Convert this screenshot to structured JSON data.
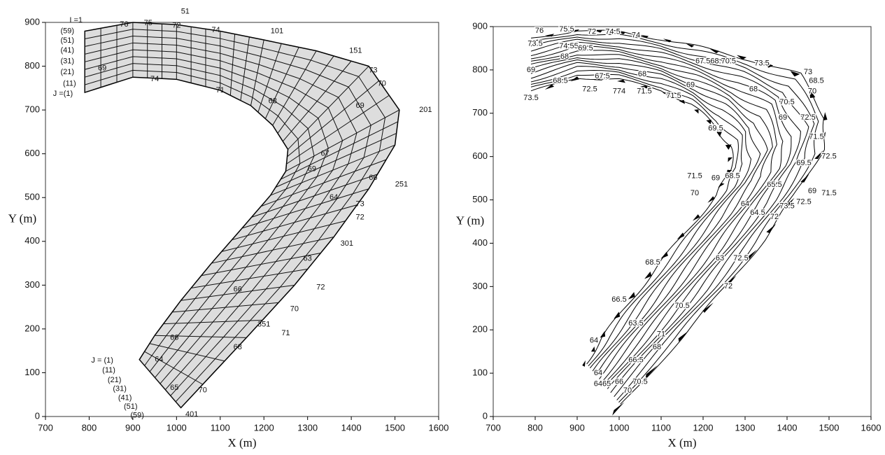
{
  "chart_data": [
    {
      "type": "mesh",
      "xlabel": "X (m)",
      "ylabel": "Y (m)",
      "xlim": [
        700,
        1600
      ],
      "ylim": [
        0,
        900
      ],
      "xticks": [
        700,
        800,
        900,
        1000,
        1100,
        1200,
        1300,
        1400,
        1500,
        1600
      ],
      "yticks": [
        0,
        100,
        200,
        300,
        400,
        500,
        600,
        700,
        800,
        900
      ],
      "annotations": [
        {
          "text": "I =1",
          "x": 770,
          "y": 905
        },
        {
          "text": "51",
          "x": 1020,
          "y": 925
        },
        {
          "text": "101",
          "x": 1230,
          "y": 880
        },
        {
          "text": "151",
          "x": 1410,
          "y": 835
        },
        {
          "text": "201",
          "x": 1570,
          "y": 700
        },
        {
          "text": "251",
          "x": 1515,
          "y": 530
        },
        {
          "text": "301",
          "x": 1390,
          "y": 395
        },
        {
          "text": "351",
          "x": 1200,
          "y": 210
        },
        {
          "text": "401",
          "x": 1035,
          "y": 5
        },
        {
          "text": "(59)",
          "x": 750,
          "y": 880
        },
        {
          "text": "(51)",
          "x": 750,
          "y": 858
        },
        {
          "text": "(41)",
          "x": 750,
          "y": 836
        },
        {
          "text": "(31)",
          "x": 750,
          "y": 811
        },
        {
          "text": "(21)",
          "x": 750,
          "y": 786
        },
        {
          "text": "(11)",
          "x": 755,
          "y": 760
        },
        {
          "text": "J =(1)",
          "x": 740,
          "y": 737
        },
        {
          "text": "J = (1)",
          "x": 830,
          "y": 128
        },
        {
          "text": "(11)",
          "x": 845,
          "y": 105
        },
        {
          "text": "(21)",
          "x": 858,
          "y": 83
        },
        {
          "text": "(31)",
          "x": 870,
          "y": 63
        },
        {
          "text": "(41)",
          "x": 882,
          "y": 42
        },
        {
          "text": "(51)",
          "x": 895,
          "y": 22
        },
        {
          "text": "(59)",
          "x": 910,
          "y": 2
        },
        {
          "text": "76",
          "x": 880,
          "y": 895
        },
        {
          "text": "75",
          "x": 935,
          "y": 898
        },
        {
          "text": "72",
          "x": 1000,
          "y": 893
        },
        {
          "text": "74",
          "x": 1090,
          "y": 882
        },
        {
          "text": "73",
          "x": 1450,
          "y": 790
        },
        {
          "text": "70",
          "x": 1470,
          "y": 760
        },
        {
          "text": "69",
          "x": 1420,
          "y": 710
        },
        {
          "text": "67",
          "x": 1340,
          "y": 600
        },
        {
          "text": "69",
          "x": 1310,
          "y": 565
        },
        {
          "text": "66",
          "x": 1450,
          "y": 545
        },
        {
          "text": "64",
          "x": 1360,
          "y": 500
        },
        {
          "text": "73",
          "x": 1420,
          "y": 485
        },
        {
          "text": "72",
          "x": 1420,
          "y": 455
        },
        {
          "text": "63",
          "x": 1300,
          "y": 360
        },
        {
          "text": "72",
          "x": 1330,
          "y": 295
        },
        {
          "text": "66",
          "x": 1140,
          "y": 290
        },
        {
          "text": "70",
          "x": 1270,
          "y": 245
        },
        {
          "text": "71",
          "x": 1250,
          "y": 190
        },
        {
          "text": "68",
          "x": 1140,
          "y": 158
        },
        {
          "text": "66",
          "x": 995,
          "y": 180
        },
        {
          "text": "64",
          "x": 960,
          "y": 130
        },
        {
          "text": "65",
          "x": 995,
          "y": 65
        },
        {
          "text": "70",
          "x": 1060,
          "y": 60
        },
        {
          "text": "68",
          "x": 1220,
          "y": 720
        },
        {
          "text": "69",
          "x": 830,
          "y": 795
        },
        {
          "text": "71",
          "x": 1100,
          "y": 745
        },
        {
          "text": "74",
          "x": 950,
          "y": 770
        }
      ]
    },
    {
      "type": "contour",
      "xlabel": "X (m)",
      "ylabel": "Y (m)",
      "xlim": [
        700,
        1600
      ],
      "ylim": [
        0,
        900
      ],
      "xticks": [
        700,
        800,
        900,
        1000,
        1100,
        1200,
        1300,
        1400,
        1500,
        1600
      ],
      "yticks": [
        0,
        100,
        200,
        300,
        400,
        500,
        600,
        700,
        800,
        900
      ],
      "annotations": [
        {
          "text": "76",
          "x": 810,
          "y": 890
        },
        {
          "text": "75.5",
          "x": 875,
          "y": 893
        },
        {
          "text": "72",
          "x": 935,
          "y": 888
        },
        {
          "text": "74.5",
          "x": 985,
          "y": 888
        },
        {
          "text": "74",
          "x": 1040,
          "y": 880
        },
        {
          "text": "73.5",
          "x": 800,
          "y": 860
        },
        {
          "text": "74.55",
          "x": 880,
          "y": 855
        },
        {
          "text": "69.5",
          "x": 920,
          "y": 850
        },
        {
          "text": "68",
          "x": 870,
          "y": 830
        },
        {
          "text": "67.568.70.5",
          "x": 1230,
          "y": 820
        },
        {
          "text": "73.5",
          "x": 1340,
          "y": 815
        },
        {
          "text": "69",
          "x": 790,
          "y": 800
        },
        {
          "text": "68.5",
          "x": 860,
          "y": 775
        },
        {
          "text": "67.5",
          "x": 960,
          "y": 785
        },
        {
          "text": "68",
          "x": 1055,
          "y": 790
        },
        {
          "text": "73.5",
          "x": 790,
          "y": 735
        },
        {
          "text": "72.5",
          "x": 930,
          "y": 755
        },
        {
          "text": "774",
          "x": 1000,
          "y": 750
        },
        {
          "text": "71.5",
          "x": 1060,
          "y": 750
        },
        {
          "text": "71.5",
          "x": 1130,
          "y": 740
        },
        {
          "text": "69",
          "x": 1170,
          "y": 765
        },
        {
          "text": "73",
          "x": 1450,
          "y": 795
        },
        {
          "text": "68.5",
          "x": 1470,
          "y": 775
        },
        {
          "text": "70",
          "x": 1460,
          "y": 750
        },
        {
          "text": "68",
          "x": 1320,
          "y": 755
        },
        {
          "text": "70.5",
          "x": 1400,
          "y": 725
        },
        {
          "text": "69",
          "x": 1390,
          "y": 690
        },
        {
          "text": "72.5",
          "x": 1450,
          "y": 690
        },
        {
          "text": "71.5",
          "x": 1470,
          "y": 645
        },
        {
          "text": "72.5",
          "x": 1500,
          "y": 600
        },
        {
          "text": "69.5",
          "x": 1440,
          "y": 585
        },
        {
          "text": "69.5",
          "x": 1230,
          "y": 665
        },
        {
          "text": "68.5",
          "x": 1270,
          "y": 555
        },
        {
          "text": "71.5",
          "x": 1180,
          "y": 555
        },
        {
          "text": "69",
          "x": 1230,
          "y": 550
        },
        {
          "text": "65.5",
          "x": 1370,
          "y": 535
        },
        {
          "text": "69",
          "x": 1460,
          "y": 520
        },
        {
          "text": "71.5",
          "x": 1500,
          "y": 515
        },
        {
          "text": "72.5",
          "x": 1440,
          "y": 495
        },
        {
          "text": "70",
          "x": 1180,
          "y": 515
        },
        {
          "text": "64",
          "x": 1300,
          "y": 490
        },
        {
          "text": "64.5",
          "x": 1330,
          "y": 470
        },
        {
          "text": "73.5",
          "x": 1400,
          "y": 485
        },
        {
          "text": "72",
          "x": 1370,
          "y": 460
        },
        {
          "text": "68.5",
          "x": 1080,
          "y": 355
        },
        {
          "text": "63",
          "x": 1240,
          "y": 365
        },
        {
          "text": "72.5",
          "x": 1290,
          "y": 365
        },
        {
          "text": "72",
          "x": 1260,
          "y": 300
        },
        {
          "text": "66.5",
          "x": 1000,
          "y": 270
        },
        {
          "text": "70.5",
          "x": 1150,
          "y": 255
        },
        {
          "text": "63.5",
          "x": 1040,
          "y": 215
        },
        {
          "text": "71",
          "x": 1100,
          "y": 190
        },
        {
          "text": "68",
          "x": 1090,
          "y": 160
        },
        {
          "text": "66.5",
          "x": 1040,
          "y": 130
        },
        {
          "text": "64",
          "x": 940,
          "y": 175
        },
        {
          "text": "70.5",
          "x": 1050,
          "y": 80
        },
        {
          "text": "64",
          "x": 950,
          "y": 100
        },
        {
          "text": "6465",
          "x": 960,
          "y": 75
        },
        {
          "text": "66",
          "x": 1000,
          "y": 80
        },
        {
          "text": "70",
          "x": 1020,
          "y": 60
        }
      ]
    }
  ]
}
